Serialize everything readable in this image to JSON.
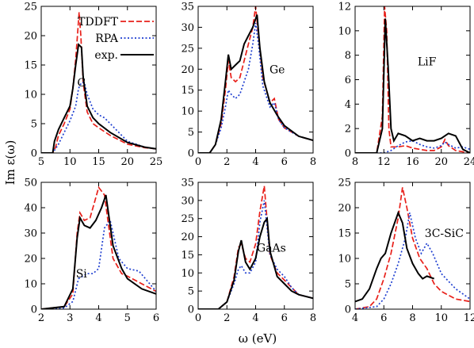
{
  "figure": {
    "ylabel": "Im ε(ω)",
    "xlabel": "ω (eV)"
  },
  "legend": [
    {
      "name": "TDDFT",
      "color": "#e8201a",
      "dash": "dashed"
    },
    {
      "name": "RPA",
      "color": "#1f3fd0",
      "dash": "dotted"
    },
    {
      "name": "exp.",
      "color": "#000000",
      "dash": "solid"
    }
  ],
  "chart_data": [
    {
      "type": "line",
      "label": "C",
      "label_pos": [
        12,
        12
      ],
      "xlim": [
        5,
        25
      ],
      "ylim": [
        0,
        25
      ],
      "xticks": [
        5,
        10,
        15,
        20,
        25
      ],
      "yticks": [
        0,
        5,
        10,
        15,
        20,
        25
      ],
      "series": [
        {
          "name": "TDDFT",
          "x": [
            5,
            7,
            7.5,
            8,
            9,
            10,
            10.5,
            11,
            11.3,
            11.6,
            11.9,
            12.3,
            13,
            14,
            15,
            17,
            20,
            23,
            25
          ],
          "y": [
            0,
            0,
            1,
            3,
            5,
            7.5,
            11,
            16,
            20,
            24,
            20,
            12,
            7,
            5,
            4.3,
            3,
            1.5,
            0.9,
            0.7
          ]
        },
        {
          "name": "RPA",
          "x": [
            5,
            7,
            8,
            9,
            10,
            11,
            11.5,
            12,
            12.5,
            13,
            14,
            15,
            16,
            18,
            20,
            23,
            25
          ],
          "y": [
            0,
            0,
            1.5,
            3.5,
            5.5,
            8,
            11,
            12,
            12,
            10,
            7.5,
            6.5,
            6,
            4,
            2,
            1,
            0.7
          ]
        },
        {
          "name": "exp.",
          "x": [
            5,
            7,
            7.3,
            8,
            9,
            10,
            10.5,
            11,
            11.5,
            12,
            12.3,
            13,
            14,
            15,
            17,
            20,
            23,
            25
          ],
          "y": [
            0,
            0,
            2,
            4,
            6,
            8,
            11,
            15,
            18.5,
            18,
            13,
            8,
            6,
            5,
            3.5,
            1.8,
            1,
            0.7
          ]
        }
      ]
    },
    {
      "type": "line",
      "label": "Ge",
      "label_pos": [
        5.5,
        20
      ],
      "xlim": [
        0,
        8
      ],
      "ylim": [
        0,
        35
      ],
      "xticks": [
        0,
        2,
        4,
        6,
        8
      ],
      "yticks": [
        0,
        5,
        10,
        15,
        20,
        25,
        30,
        35
      ],
      "series": [
        {
          "name": "TDDFT",
          "x": [
            0,
            0.8,
            1.2,
            1.6,
            1.9,
            2.1,
            2.3,
            2.6,
            2.9,
            3.2,
            3.5,
            3.8,
            4,
            4.2,
            4.5,
            5,
            5.3,
            5.6,
            6,
            7,
            8
          ],
          "y": [
            0,
            0,
            2,
            7,
            15,
            22,
            18,
            17,
            18,
            22,
            26,
            30,
            35,
            28,
            18,
            12,
            13,
            8,
            6,
            4,
            3
          ]
        },
        {
          "name": "RPA",
          "x": [
            0,
            0.8,
            1.2,
            1.6,
            1.9,
            2.1,
            2.3,
            2.6,
            2.9,
            3.2,
            3.5,
            3.8,
            4,
            4.2,
            4.5,
            5,
            5.3,
            5.6,
            6,
            7,
            8
          ],
          "y": [
            0,
            0,
            2,
            6,
            11,
            15,
            14,
            13,
            14,
            17,
            20,
            26,
            31,
            26,
            16,
            11,
            12,
            8,
            6,
            4,
            3
          ]
        },
        {
          "name": "exp.",
          "x": [
            0,
            0.8,
            1.2,
            1.6,
            1.9,
            2.1,
            2.3,
            2.6,
            2.9,
            3.2,
            3.5,
            3.8,
            4.1,
            4.3,
            4.6,
            5,
            5.5,
            6,
            7,
            8
          ],
          "y": [
            0,
            0,
            2,
            8,
            17,
            23.5,
            20,
            21,
            22,
            26,
            28,
            30,
            33,
            25,
            17,
            12,
            9,
            6.5,
            4,
            3
          ]
        }
      ]
    },
    {
      "type": "line",
      "label": "LiF",
      "label_pos": [
        18,
        7.5
      ],
      "xlim": [
        8,
        24
      ],
      "ylim": [
        0,
        12
      ],
      "xticks": [
        8,
        12,
        16,
        20,
        24
      ],
      "yticks": [
        0,
        2,
        4,
        6,
        8,
        10,
        12
      ],
      "series": [
        {
          "name": "TDDFT",
          "x": [
            8,
            11,
            11.8,
            12.1,
            12.4,
            12.7,
            13,
            14,
            15,
            16,
            17,
            18,
            19,
            20,
            20.5,
            21,
            22,
            24
          ],
          "y": [
            0,
            0,
            3,
            12,
            10,
            2,
            0.5,
            0.5,
            0.6,
            0.4,
            0.3,
            0.2,
            0.2,
            0.5,
            1.1,
            0.6,
            0.2,
            0
          ]
        },
        {
          "name": "RPA",
          "x": [
            8,
            12,
            13,
            14,
            15,
            16,
            17,
            18,
            19,
            20,
            20.5,
            21,
            22,
            23,
            24
          ],
          "y": [
            0,
            0,
            0.2,
            0.6,
            0.9,
            1,
            0.7,
            0.5,
            0.4,
            0.6,
            0.9,
            0.7,
            0.4,
            0.5,
            0.3
          ]
        },
        {
          "name": "exp.",
          "x": [
            8,
            11,
            11.8,
            12.2,
            12.6,
            13,
            13.4,
            14,
            15,
            16,
            17,
            18,
            19,
            20,
            21,
            22,
            23,
            24
          ],
          "y": [
            0,
            0,
            2,
            11,
            7,
            2,
            1,
            1.6,
            1.4,
            1,
            1.2,
            1,
            1,
            1.2,
            1.6,
            1.4,
            0.3,
            0
          ]
        }
      ]
    },
    {
      "type": "line",
      "label": "Si",
      "label_pos": [
        3.4,
        14
      ],
      "xlim": [
        2,
        6
      ],
      "ylim": [
        0,
        50
      ],
      "xticks": [
        2,
        3,
        4,
        5,
        6
      ],
      "yticks": [
        0,
        10,
        20,
        30,
        40,
        50
      ],
      "series": [
        {
          "name": "TDDFT",
          "x": [
            2,
            2.8,
            3.1,
            3.25,
            3.35,
            3.5,
            3.7,
            3.85,
            4,
            4.2,
            4.5,
            4.8,
            5,
            5.5,
            6
          ],
          "y": [
            0,
            1,
            6,
            30,
            38,
            35,
            36,
            42,
            48,
            45,
            20,
            14,
            13,
            10,
            7
          ]
        },
        {
          "name": "RPA",
          "x": [
            2,
            2.8,
            3.1,
            3.3,
            3.6,
            3.8,
            4,
            4.2,
            4.4,
            4.7,
            5,
            5.4,
            6
          ],
          "y": [
            0,
            0.5,
            3,
            12,
            14,
            14,
            16,
            32,
            35,
            20,
            16,
            15,
            7
          ]
        },
        {
          "name": "exp.",
          "x": [
            2,
            2.8,
            3.1,
            3.25,
            3.35,
            3.5,
            3.7,
            3.9,
            4.1,
            4.25,
            4.5,
            4.8,
            5,
            5.5,
            6
          ],
          "y": [
            0,
            1,
            8,
            28,
            36,
            33,
            32,
            35,
            40,
            45,
            25,
            16,
            12,
            8,
            6
          ]
        }
      ]
    },
    {
      "type": "line",
      "label": "GaAs",
      "label_pos": [
        5.1,
        17
      ],
      "xlim": [
        0,
        8
      ],
      "ylim": [
        0,
        35
      ],
      "xticks": [
        0,
        2,
        4,
        6,
        8
      ],
      "yticks": [
        0,
        5,
        10,
        15,
        20,
        25,
        30,
        35
      ],
      "series": [
        {
          "name": "TDDFT",
          "x": [
            0,
            1.4,
            2,
            2.5,
            2.8,
            3,
            3.3,
            3.6,
            4,
            4.3,
            4.6,
            5,
            5.5,
            6,
            6.5,
            7,
            8
          ],
          "y": [
            0,
            0,
            2,
            9,
            17,
            18,
            14,
            13,
            18,
            27,
            34,
            15,
            10,
            8,
            6,
            4,
            3
          ]
        },
        {
          "name": "RPA",
          "x": [
            0,
            1.4,
            2,
            2.5,
            2.8,
            3,
            3.3,
            3.6,
            4,
            4.3,
            4.6,
            5,
            5.5,
            6,
            6.5,
            7,
            8
          ],
          "y": [
            0,
            0,
            2,
            7,
            11,
            12,
            10,
            10,
            13,
            24,
            30,
            15,
            11,
            9,
            6,
            4,
            3
          ]
        },
        {
          "name": "exp.",
          "x": [
            0,
            1.4,
            2,
            2.5,
            2.8,
            3,
            3.3,
            3.6,
            4,
            4.3,
            4.6,
            4.8,
            5,
            5.5,
            6,
            6.5,
            7,
            8
          ],
          "y": [
            0,
            0,
            2,
            8,
            16,
            19,
            13,
            11,
            14,
            20,
            24,
            25,
            16,
            9,
            7,
            5,
            4,
            3
          ]
        }
      ]
    },
    {
      "type": "line",
      "label": "3C-SiC",
      "label_pos": [
        10.2,
        15
      ],
      "xlim": [
        4,
        12
      ],
      "ylim": [
        0,
        25
      ],
      "xticks": [
        4,
        6,
        8,
        10,
        12
      ],
      "yticks": [
        0,
        5,
        10,
        15,
        20,
        25
      ],
      "series": [
        {
          "name": "TDDFT",
          "x": [
            4,
            5,
            5.5,
            6,
            6.5,
            7,
            7.3,
            7.6,
            8,
            8.5,
            9,
            9.5,
            10,
            11,
            12
          ],
          "y": [
            0,
            0.5,
            2,
            6,
            11,
            18,
            24,
            20,
            14,
            10,
            8,
            5,
            3.5,
            2,
            1.5
          ]
        },
        {
          "name": "RPA",
          "x": [
            4,
            5.5,
            6,
            6.5,
            7,
            7.5,
            7.8,
            8.2,
            8.6,
            9,
            9.4,
            10,
            11,
            12
          ],
          "y": [
            0,
            0.5,
            2,
            5,
            9,
            14,
            19,
            14,
            11,
            13,
            11,
            7,
            4,
            2
          ]
        },
        {
          "name": "exp.",
          "x": [
            4,
            4.5,
            5,
            5.5,
            5.8,
            6.1,
            6.5,
            7,
            7.3,
            7.6,
            8,
            8.4,
            8.7,
            9,
            9.5
          ],
          "y": [
            1.5,
            2,
            4,
            8,
            10,
            11,
            15,
            19,
            17,
            12,
            9,
            7,
            6,
            6.5,
            6
          ]
        }
      ]
    }
  ]
}
